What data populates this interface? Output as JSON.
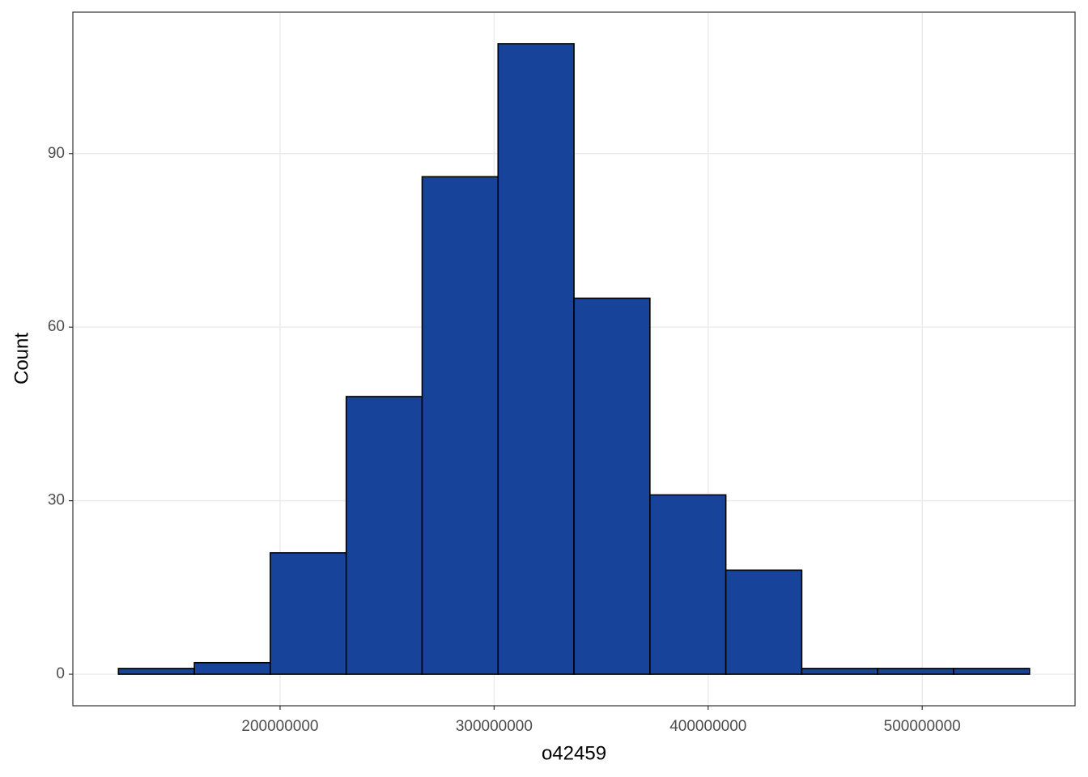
{
  "chart_data": {
    "type": "histogram",
    "x_label": "o42459",
    "y_label": "Count",
    "bins": [
      124500000,
      159970000,
      195440000,
      230910000,
      266380000,
      301850000,
      337320000,
      372790000,
      408260000,
      443730000,
      479200000,
      514670000,
      550140000
    ],
    "values": [
      1,
      2,
      21,
      48,
      86,
      109,
      65,
      31,
      18,
      1,
      1,
      1
    ],
    "color": "#17439a",
    "xlim": [
      103200000,
      571400000
    ],
    "xticks": [
      200000000,
      300000000,
      400000000,
      500000000
    ],
    "ylim": [
      -5.45,
      114.45
    ],
    "yticks": [
      0,
      30,
      60,
      90
    ],
    "grid": true
  }
}
